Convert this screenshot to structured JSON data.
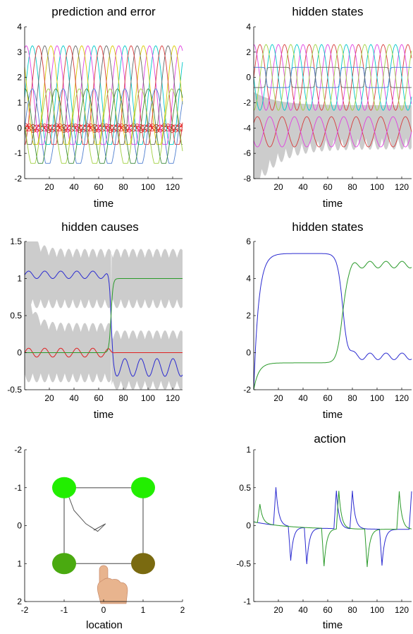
{
  "chart_data": [
    {
      "id": "p1",
      "type": "line",
      "title": "prediction and error",
      "xlabel": "time",
      "ylabel": "",
      "xlim": [
        0,
        128
      ],
      "ylim": [
        -2,
        4
      ],
      "xticks": [
        20,
        40,
        60,
        80,
        100,
        120
      ],
      "yticks": [
        -2,
        -1,
        0,
        1,
        2,
        3,
        4
      ],
      "series": [
        {
          "color": "#00c8c8",
          "kind": "sine",
          "amp": 2.05,
          "offset": 1.2,
          "period": 25,
          "phase": 0
        },
        {
          "color": "#e040e0",
          "kind": "sine",
          "amp": 2.05,
          "offset": 1.2,
          "period": 25,
          "phase": 5
        },
        {
          "color": "#d8c800",
          "kind": "sine",
          "amp": 2.05,
          "offset": 1.2,
          "period": 25,
          "phase": 10
        },
        {
          "color": "#666666",
          "kind": "sine",
          "amp": 2.05,
          "offset": 1.2,
          "period": 25,
          "phase": 15
        },
        {
          "color": "#d63a3a",
          "kind": "sine",
          "amp": 2.05,
          "offset": 1.2,
          "period": 25,
          "phase": 20
        },
        {
          "color": "#a0d040",
          "kind": "sine",
          "amp": 1.55,
          "offset": 0.0,
          "period": 25,
          "phase": 12
        },
        {
          "color": "#4f7fd0",
          "kind": "sine",
          "amp": 1.55,
          "offset": 0.0,
          "period": 25,
          "phase": 0
        },
        {
          "color": "#3a8a3a",
          "kind": "sine",
          "amp": 1.55,
          "offset": 0.0,
          "period": 25,
          "phase": 6
        }
      ],
      "error_band": {
        "color": "#e82020",
        "amp": 0.2
      }
    },
    {
      "id": "p2",
      "type": "line",
      "title": "hidden states",
      "xlabel": "time",
      "ylabel": "",
      "xlim": [
        0,
        128
      ],
      "ylim": [
        -8,
        4
      ],
      "xticks": [
        20,
        40,
        60,
        80,
        100,
        120
      ],
      "yticks": [
        -8,
        -6,
        -4,
        -2,
        0,
        2,
        4
      ],
      "band": {
        "color": "#cccccc",
        "center": -3.5,
        "halfwidth": 1.3,
        "extra_start": 3.5,
        "ripple": 0.9
      },
      "series": [
        {
          "color": "#d63a3a",
          "kind": "sine",
          "amp": 2.6,
          "offset": 0.0,
          "period": 20,
          "phase": 0
        },
        {
          "color": "#e040e0",
          "kind": "sine",
          "amp": 2.6,
          "offset": 0.0,
          "period": 20,
          "phase": 5
        },
        {
          "color": "#00c8c8",
          "kind": "sine",
          "amp": 2.6,
          "offset": 0.0,
          "period": 20,
          "phase": 10
        },
        {
          "color": "#a0d040",
          "kind": "sine",
          "amp": 2.6,
          "offset": 0.0,
          "period": 20,
          "phase": 15
        },
        {
          "color": "#d63a3a",
          "kind": "sine",
          "amp": 1.2,
          "offset": -4.3,
          "period": 20,
          "phase": 2
        },
        {
          "color": "#e040e0",
          "kind": "sine",
          "amp": 1.2,
          "offset": -4.3,
          "period": 20,
          "phase": 12
        },
        {
          "color": "#3a7ad0",
          "kind": "square",
          "low": -0.8,
          "high": 0.8,
          "period": 40,
          "phase": 10
        },
        {
          "color": "#666666",
          "kind": "square",
          "low": -0.8,
          "high": 0.8,
          "period": 40,
          "phase": 30
        }
      ]
    },
    {
      "id": "p3",
      "type": "line",
      "title": "hidden causes",
      "xlabel": "time",
      "ylabel": "",
      "xlim": [
        0,
        128
      ],
      "ylim": [
        -0.5,
        1.5
      ],
      "xticks": [
        20,
        40,
        60,
        80,
        100,
        120
      ],
      "yticks": [
        -0.5,
        0,
        0.5,
        1,
        1.5
      ],
      "switch_time": 70,
      "series": [
        {
          "color": "#2a2ad0",
          "before": 1.05,
          "before_amp": 0.05,
          "after": -0.2,
          "after_amp": 0.12,
          "period": 13
        },
        {
          "color": "#e02020",
          "before": 0.0,
          "before_amp": 0.06,
          "after": 0.0,
          "after_amp": 0.0,
          "period": 13
        },
        {
          "color": "#2a9a2a",
          "before": 0.0,
          "before_amp": 0.0,
          "after": 1.0,
          "after_amp": 0.0,
          "period": 13
        }
      ]
    },
    {
      "id": "p4",
      "type": "line",
      "title": "hidden states",
      "xlabel": "time",
      "ylabel": "",
      "xlim": [
        0,
        128
      ],
      "ylim": [
        -2,
        6
      ],
      "xticks": [
        20,
        40,
        60,
        80,
        100,
        120
      ],
      "yticks": [
        -2,
        0,
        2,
        4,
        6
      ],
      "switch_time": 72,
      "series": [
        {
          "color": "#2a2ad0",
          "before": 5.35,
          "after": -0.2,
          "after_amp": 0.18,
          "period": 13
        },
        {
          "color": "#2a9a2a",
          "before": -0.55,
          "after": 4.75,
          "after_amp": 0.18,
          "period": 13
        }
      ]
    },
    {
      "id": "p5",
      "type": "scatter",
      "title": "",
      "xlabel": "location",
      "ylabel": "",
      "xlim": [
        -2,
        2
      ],
      "ylim": [
        -2,
        2
      ],
      "xticks": [
        -2,
        -1,
        0,
        1,
        2
      ],
      "yticks": [
        -2,
        -1,
        0,
        1,
        2
      ],
      "y_reversed": true,
      "targets": [
        {
          "x": -1,
          "y": -1,
          "color": "#22ee00"
        },
        {
          "x": 1,
          "y": -1,
          "color": "#22ee00"
        },
        {
          "x": -1,
          "y": 1,
          "color": "#4aaa10"
        },
        {
          "x": 1,
          "y": 1,
          "color": "#7a6a10"
        }
      ]
    },
    {
      "id": "p6",
      "type": "line",
      "title": "action",
      "xlabel": "time",
      "ylabel": "",
      "xlim": [
        0,
        128
      ],
      "ylim": [
        -1,
        1
      ],
      "xticks": [
        20,
        40,
        60,
        80,
        100,
        120
      ],
      "yticks": [
        -1,
        -0.5,
        0,
        0.5,
        1
      ],
      "series": [
        {
          "color": "#2a2ad0",
          "spikes": [
            [
              18,
              0.5
            ],
            [
              30,
              -0.45
            ],
            [
              43,
              -0.48
            ],
            [
              67,
              0.5
            ],
            [
              80,
              0.5
            ],
            [
              104,
              -0.48
            ],
            [
              128,
              0.5
            ]
          ]
        },
        {
          "color": "#2a9a2a",
          "spikes": [
            [
              5,
              0.25
            ],
            [
              57,
              -0.5
            ],
            [
              69,
              0.5
            ],
            [
              92,
              -0.5
            ],
            [
              118,
              0.5
            ]
          ]
        }
      ]
    }
  ]
}
